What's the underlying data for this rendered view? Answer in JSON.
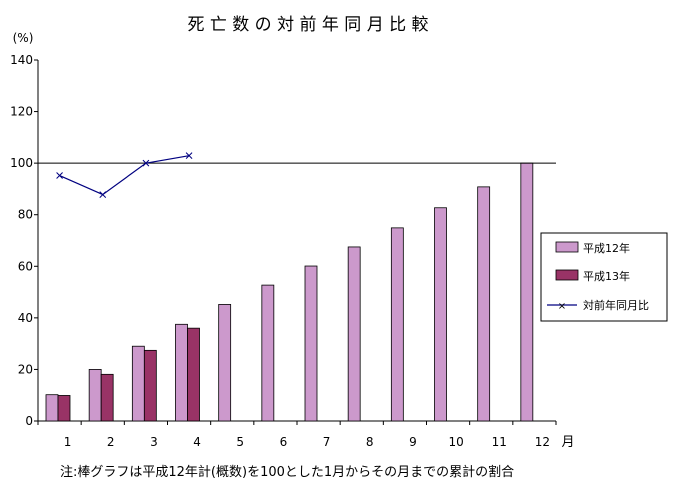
{
  "chart_data": {
    "type": "bar",
    "title": "死 亡 数 の 対 前 年 同 月 比 較",
    "ylabel": "(%)",
    "xlabel": "月",
    "categories": [
      "1",
      "2",
      "3",
      "4",
      "5",
      "6",
      "7",
      "8",
      "9",
      "10",
      "11",
      "12"
    ],
    "ylim": [
      0,
      140
    ],
    "yticks": [
      0,
      20,
      40,
      60,
      80,
      100,
      120,
      140
    ],
    "reference_line": 100,
    "grid": false,
    "legend_position": "right",
    "series": [
      {
        "name": "平成12年",
        "type": "bar",
        "color": "#cc99cc",
        "values": [
          10.2,
          20.0,
          29.0,
          37.5,
          45.2,
          52.7,
          60.1,
          67.5,
          74.9,
          82.7,
          90.8,
          100
        ]
      },
      {
        "name": "平成13年",
        "type": "bar",
        "color": "#993366",
        "values": [
          9.9,
          18.1,
          27.4,
          36.0,
          null,
          null,
          null,
          null,
          null,
          null,
          null,
          null
        ]
      },
      {
        "name": "対前年同月比",
        "type": "line",
        "color": "#000080",
        "marker": "x",
        "values": [
          95.2,
          87.8,
          100.0,
          102.9,
          null,
          null,
          null,
          null,
          null,
          null,
          null,
          null
        ]
      }
    ],
    "note": "注:棒グラフは平成12年計(概数)を100とした1月からその月までの累計の割合"
  }
}
